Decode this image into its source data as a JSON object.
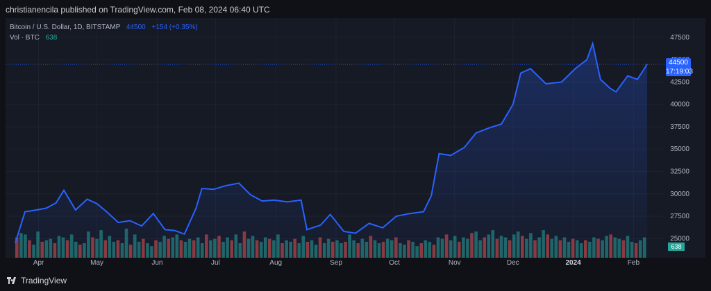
{
  "header": {
    "publish_text": "christianencila published on TradingView.com, Feb 08, 2024 06:40 UTC"
  },
  "legend": {
    "symbol": "Bitcoin / U.S. Dollar, 1D, BITSTAMP",
    "price": "44500",
    "change": "+154 (+0.35%)",
    "volume_label": "Vol · BTC",
    "volume_value": "638"
  },
  "price_label": {
    "price": "44500",
    "time": "17:19:03"
  },
  "volume_label": "638",
  "footer": {
    "brand": "TradingView"
  },
  "colors": {
    "line": "#2962ff",
    "up": "#26a69a",
    "down": "#ef5350",
    "bg": "#161a25"
  },
  "chart_data": {
    "type": "line",
    "series": [
      {
        "name": "BTCUSD",
        "x": [
          "2023-03-20",
          "2023-03-25",
          "2023-03-31",
          "2023-04-05",
          "2023-04-10",
          "2023-04-14",
          "2023-04-20",
          "2023-04-26",
          "2023-05-01",
          "2023-05-06",
          "2023-05-12",
          "2023-05-18",
          "2023-05-24",
          "2023-05-30",
          "2023-06-05",
          "2023-06-10",
          "2023-06-15",
          "2023-06-21",
          "2023-06-24",
          "2023-06-30",
          "2023-07-06",
          "2023-07-13",
          "2023-07-19",
          "2023-07-25",
          "2023-07-31",
          "2023-08-07",
          "2023-08-14",
          "2023-08-17",
          "2023-08-24",
          "2023-08-29",
          "2023-09-05",
          "2023-09-11",
          "2023-09-18",
          "2023-09-25",
          "2023-10-02",
          "2023-10-09",
          "2023-10-16",
          "2023-10-20",
          "2023-10-24",
          "2023-10-30",
          "2023-11-06",
          "2023-11-12",
          "2023-11-19",
          "2023-11-25",
          "2023-12-01",
          "2023-12-05",
          "2023-12-10",
          "2023-12-18",
          "2023-12-26",
          "2024-01-02",
          "2024-01-08",
          "2024-01-11",
          "2024-01-15",
          "2024-01-20",
          "2024-01-23",
          "2024-01-29",
          "2024-02-03",
          "2024-02-08"
        ],
        "values": [
          24500,
          28000,
          28200,
          28400,
          29000,
          30400,
          28200,
          29400,
          28900,
          28000,
          26800,
          27000,
          26400,
          27800,
          26000,
          25900,
          25500,
          28400,
          30600,
          30500,
          30900,
          31200,
          29900,
          29200,
          29300,
          29100,
          29300,
          26000,
          26500,
          27700,
          25800,
          25600,
          26700,
          26200,
          27500,
          27800,
          28000,
          29800,
          34500,
          34300,
          35200,
          36800,
          37400,
          37800,
          40000,
          43500,
          44000,
          42300,
          42500,
          44000,
          45000,
          46800,
          42800,
          41800,
          41400,
          43200,
          42800,
          44500
        ]
      }
    ],
    "volume": [
      14,
      17,
      16,
      12,
      9,
      18,
      11,
      12,
      13,
      10,
      15,
      14,
      12,
      16,
      11,
      9,
      10,
      18,
      14,
      13,
      19,
      12,
      15,
      11,
      12,
      10,
      20,
      9,
      16,
      11,
      13,
      10,
      8,
      12,
      11,
      15,
      13,
      14,
      16,
      12,
      11,
      13,
      12,
      14,
      10,
      16,
      12,
      13,
      15,
      11,
      14,
      12,
      16,
      10,
      18,
      13,
      15,
      12,
      11,
      14,
      13,
      12,
      16,
      10,
      12,
      11,
      13,
      10,
      15,
      11,
      12,
      9,
      14,
      10,
      13,
      11,
      12,
      10,
      11,
      16,
      12,
      10,
      13,
      11,
      15,
      12,
      10,
      11,
      13,
      12,
      14,
      10,
      9,
      12,
      11,
      8,
      10,
      12,
      11,
      9,
      14,
      13,
      16,
      12,
      15,
      11,
      14,
      13,
      17,
      18,
      12,
      14,
      16,
      19,
      13,
      15,
      14,
      12,
      16,
      18,
      15,
      13,
      17,
      12,
      14,
      19,
      16,
      13,
      15,
      12,
      14,
      11,
      13,
      12,
      10,
      12,
      11,
      14,
      13,
      12,
      15,
      16,
      14,
      13,
      12,
      15,
      11,
      10,
      12,
      14
    ],
    "y_ticks": [
      "47500",
      "45000",
      "42500",
      "40000",
      "37500",
      "35000",
      "32500",
      "30000",
      "27500",
      "25000"
    ],
    "x_ticks": [
      "Apr",
      "May",
      "Jun",
      "Jul",
      "Aug",
      "Sep",
      "Oct",
      "Nov",
      "Dec",
      "2024",
      "Feb"
    ],
    "ylim": [
      22700,
      48500
    ],
    "grid": true
  }
}
